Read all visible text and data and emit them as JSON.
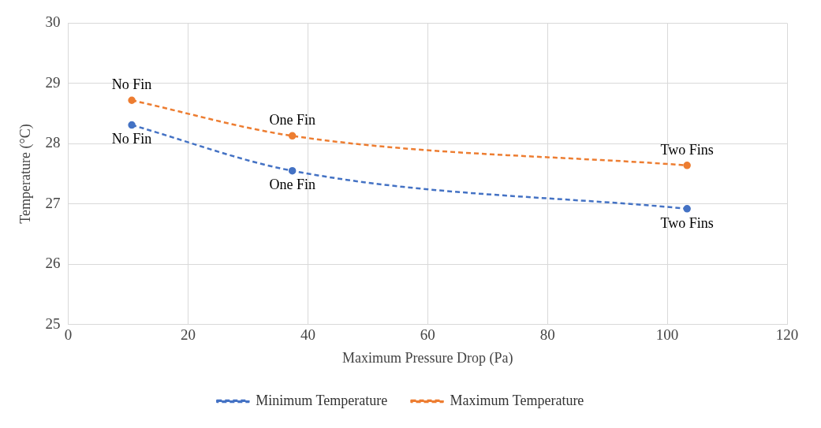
{
  "chart_data": {
    "type": "line",
    "xlabel": "Maximum Pressure Drop (Pa)",
    "ylabel": "Temperature (°C)",
    "x": [
      10.6,
      37.4,
      103.3
    ],
    "series": [
      {
        "name": "Minimum Temperature",
        "color": "#4472c4",
        "values": [
          28.31,
          27.55,
          26.92
        ]
      },
      {
        "name": "Maximum Temperature",
        "color": "#ed7d31",
        "values": [
          28.72,
          28.13,
          27.64
        ]
      }
    ],
    "xlim": [
      0,
      120
    ],
    "xticks": [
      0,
      20,
      40,
      60,
      80,
      100,
      120
    ],
    "ylim": [
      25,
      30
    ],
    "yticks": [
      25,
      26,
      27,
      28,
      29,
      30
    ],
    "grid": true,
    "legend": "bottom",
    "marker": "circle",
    "line_style": "dashed",
    "annotations": [
      {
        "text": "No Fin",
        "x": 10.6,
        "y": 28.72
      },
      {
        "text": "One Fin",
        "x": 37.4,
        "y": 28.13
      },
      {
        "text": "Two Fins",
        "x": 103.3,
        "y": 27.64
      },
      {
        "text": "No Fin",
        "x": 10.6,
        "y": 28.31
      },
      {
        "text": "One Fin",
        "x": 37.4,
        "y": 27.55
      },
      {
        "text": "Two Fins",
        "x": 103.3,
        "y": 26.92
      }
    ]
  }
}
